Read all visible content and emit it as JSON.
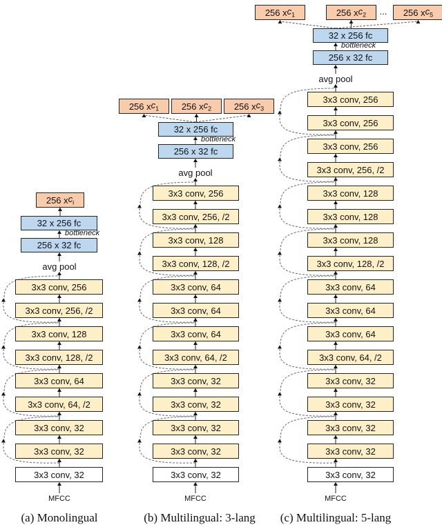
{
  "figure": {
    "columns": [
      {
        "id": "a",
        "caption": "(a) Monolingual",
        "input": "MFCC",
        "outputs": [
          {
            "text": "256 x ",
            "var": "c",
            "sub": "i"
          }
        ],
        "fc_top": "32 x 256 fc",
        "bottleneck": "bottleneck",
        "fc_bottom": "256 x 32 fc",
        "pool": "avg pool",
        "conv_layers": [
          "3x3 conv, 256",
          "3x3 conv, 256, /2",
          "3x3 conv, 128",
          "3x3 conv, 128, /2",
          "3x3 conv, 64",
          "3x3 conv, 64, /2",
          "3x3 conv, 32",
          "3x3 conv, 32"
        ],
        "stem": "3x3 conv, 32"
      },
      {
        "id": "b",
        "caption": "(b) Multilingual: 3-lang",
        "input": "MFCC",
        "outputs": [
          {
            "text": "256 x ",
            "var": "c",
            "sub": "1"
          },
          {
            "text": "256 x ",
            "var": "c",
            "sub": "2"
          },
          {
            "text": "256 x ",
            "var": "c",
            "sub": "3"
          }
        ],
        "fc_top": "32 x 256 fc",
        "bottleneck": "bottleneck",
        "fc_bottom": "256 x 32 fc",
        "pool": "avg pool",
        "conv_layers": [
          "3x3 conv, 256",
          "3x3 conv, 256, /2",
          "3x3 conv, 128",
          "3x3 conv, 128, /2",
          "3x3 conv, 64",
          "3x3 conv, 64",
          "3x3 conv, 64",
          "3x3 conv, 64, /2",
          "3x3 conv, 32",
          "3x3 conv, 32",
          "3x3 conv, 32",
          "3x3 conv, 32"
        ],
        "stem": "3x3 conv, 32"
      },
      {
        "id": "c",
        "caption": "(c) Multilingual: 5-lang",
        "input": "MFCC",
        "outputs": [
          {
            "text": "256 x ",
            "var": "c",
            "sub": "1"
          },
          {
            "text": "256 x ",
            "var": "c",
            "sub": "2"
          },
          {
            "text": "256 x ",
            "var": "c",
            "sub": "5"
          }
        ],
        "ellipsis": "...",
        "fc_top": "32 x 256 fc",
        "bottleneck": "bottleneck",
        "fc_bottom": "256 x 32 fc",
        "pool": "avg pool",
        "conv_layers": [
          "3x3 conv, 256",
          "3x3 conv, 256",
          "3x3 conv, 256",
          "3x3 conv, 256, /2",
          "3x3 conv, 128",
          "3x3 conv, 128",
          "3x3 conv, 128",
          "3x3 conv, 128, /2",
          "3x3 conv, 64",
          "3x3 conv, 64",
          "3x3 conv, 64",
          "3x3 conv, 64, /2",
          "3x3 conv, 32",
          "3x3 conv, 32",
          "3x3 conv, 32",
          "3x3 conv, 32"
        ],
        "stem": "3x3 conv, 32"
      }
    ],
    "colors": {
      "conv": "#fdf0c8",
      "fc": "#bdd7ee",
      "output": "#f8cbad",
      "stem": "#ffffff"
    }
  }
}
